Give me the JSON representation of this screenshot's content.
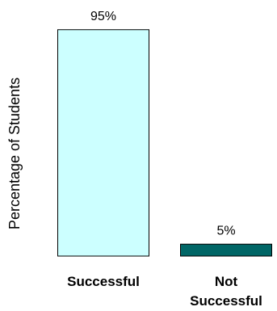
{
  "chart_data": {
    "type": "bar",
    "title": "",
    "xlabel": "",
    "ylabel": "Percentage of Students",
    "ylim": [
      0,
      100
    ],
    "grid": false,
    "categories": [
      [
        "Successful"
      ],
      [
        "Not",
        "Successful"
      ]
    ],
    "values": [
      95,
      5
    ],
    "data_labels": [
      "95%",
      "5%"
    ],
    "colors": [
      "#ccffff",
      "#006666"
    ],
    "border_color": "#000000"
  }
}
